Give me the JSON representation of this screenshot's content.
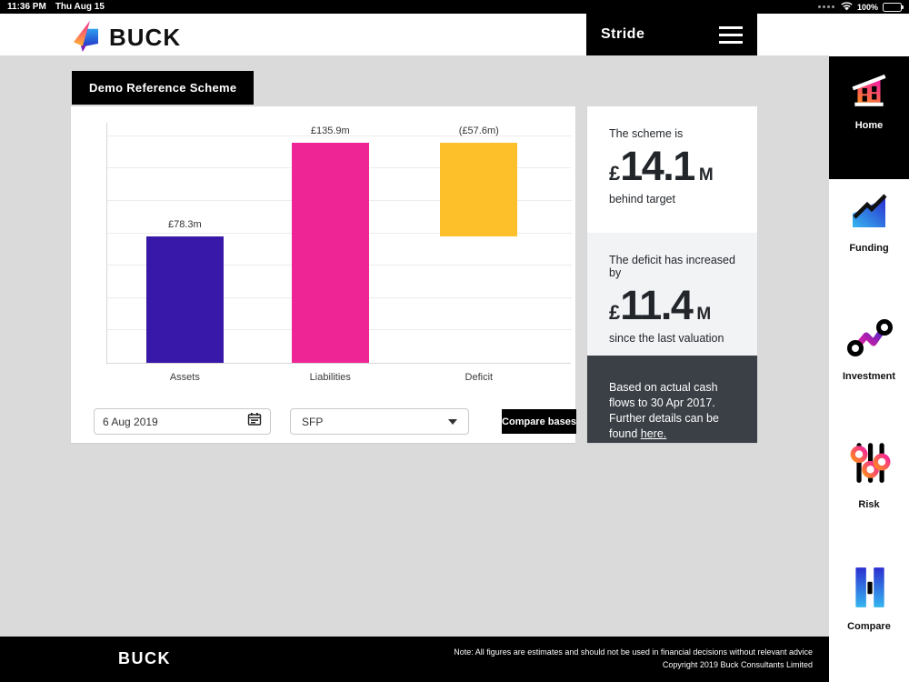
{
  "status_bar": {
    "time": "11:36 PM",
    "date": "Thu Aug 15",
    "battery_percent": "100%"
  },
  "header": {
    "brand": "BUCK",
    "app_title": "Stride"
  },
  "scheme_badge": "Demo Reference Scheme",
  "chart_data": {
    "type": "bar",
    "title": "",
    "unit": "£m",
    "categories": [
      "Assets",
      "Liabilities",
      "Deficit"
    ],
    "bars": [
      {
        "category": "Assets",
        "value": 78.3,
        "base": 0,
        "value_label": "£78.3m",
        "color": "#3818a8"
      },
      {
        "category": "Liabilities",
        "value": 135.9,
        "base": 0,
        "value_label": "£135.9m",
        "color": "#ee2695"
      },
      {
        "category": "Deficit",
        "value": 57.6,
        "base": 78.3,
        "value_label": "(£57.6m)",
        "color": "#fec02a"
      }
    ],
    "ylim": [
      0,
      140
    ],
    "grid_step": 20,
    "grid": true,
    "y_tick_labels_visible": false,
    "legend_position": "none",
    "note": "Deficit bar floats between assets (78.3) and liabilities (135.9)"
  },
  "controls": {
    "date_field": {
      "value": "6 Aug 2019"
    },
    "basis_select": {
      "value": "SFP"
    },
    "compare_button_label": "Compare bases"
  },
  "stats": [
    {
      "prefix": "The scheme is",
      "currency": "£",
      "value": "14.1",
      "unit": "M",
      "suffix": "behind target"
    },
    {
      "prefix": "The deficit has increased by",
      "currency": "£",
      "value": "11.4",
      "unit": "M",
      "suffix": "since the last valuation"
    }
  ],
  "info_note": {
    "text_before_link": "Based on actual cash flows to 30 Apr 2017. Further details can be found ",
    "link_text": "here."
  },
  "sidebar": {
    "items": [
      {
        "label": "Home",
        "active": true
      },
      {
        "label": "Funding",
        "active": false
      },
      {
        "label": "Investment",
        "active": false
      },
      {
        "label": "Risk",
        "active": false
      },
      {
        "label": "Compare",
        "active": false
      }
    ]
  },
  "footer": {
    "brand": "BUCK",
    "note": "Note: All figures are estimates and should not be used in financial decisions without relevant advice",
    "copyright": "Copyright 2019 Buck Consultants Limited"
  }
}
